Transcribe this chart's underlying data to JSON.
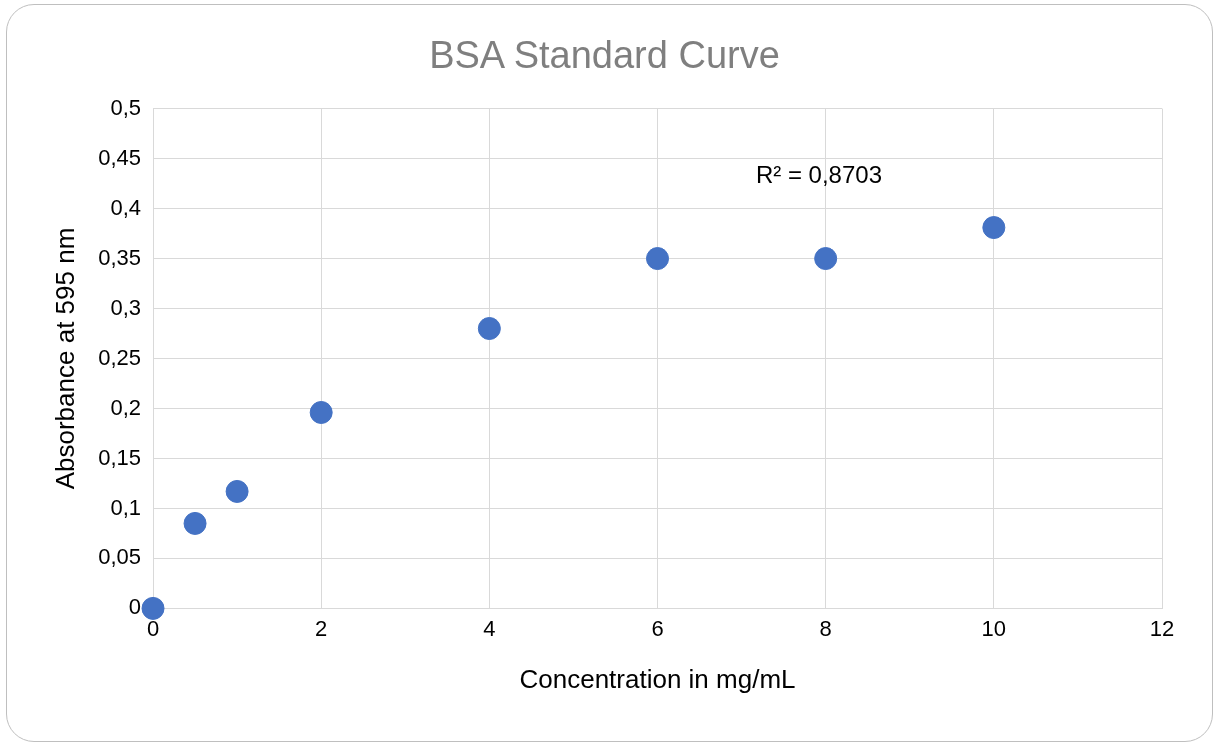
{
  "chart_data": {
    "type": "scatter",
    "title": "BSA Standard Curve",
    "xlabel": "Concentration in mg/mL",
    "ylabel": "Absorbance at 595 nm",
    "x": [
      0,
      0.5,
      1,
      2,
      4,
      6,
      8,
      10
    ],
    "series": [
      {
        "color": "#4472c4",
        "values": [
          0,
          0.085,
          0.117,
          0.196,
          0.28,
          0.35,
          0.35,
          0.381
        ]
      }
    ],
    "xlim": [
      0,
      12
    ],
    "xticks": [
      0,
      2,
      4,
      6,
      8,
      10,
      12
    ],
    "ylim": [
      0,
      0.5
    ],
    "yticks": [
      0,
      {
        "value": 0.05,
        "label": "0,05"
      },
      {
        "value": 0.1,
        "label": "0,1"
      },
      {
        "value": 0.15,
        "label": "0,15"
      },
      {
        "value": 0.2,
        "label": "0,2"
      },
      {
        "value": 0.25,
        "label": "0,25"
      },
      {
        "value": 0.3,
        "label": "0,3"
      },
      {
        "value": 0.35,
        "label": "0,35"
      },
      {
        "value": 0.4,
        "label": "0,4"
      },
      {
        "value": 0.45,
        "label": "0,45"
      },
      {
        "value": 0.5,
        "label": "0,5"
      }
    ],
    "grid": true,
    "legend": false,
    "marker": "circle",
    "annotations": [
      "R² = 0,8703"
    ]
  }
}
